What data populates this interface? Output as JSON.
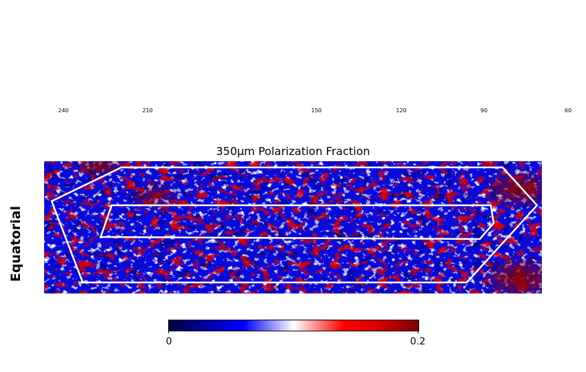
{
  "chart_data": {
    "type": "heatmap",
    "title": "350μm Polarization Fraction",
    "row_label": "Equatorial",
    "x_ticks": [
      "240",
      "210",
      "150",
      "120",
      "90",
      "60"
    ],
    "x_tick_values": [
      240,
      210,
      150,
      120,
      90,
      60
    ],
    "colorbar": {
      "min_label": "0",
      "max_label": "0.2",
      "range": [
        0,
        0.2
      ],
      "colormap": [
        "#000040",
        "#0000b3",
        "#0000ff",
        "#ffffff",
        "#ff0000",
        "#d20000",
        "#7a0000"
      ]
    },
    "outline_color": "#ffffff"
  }
}
